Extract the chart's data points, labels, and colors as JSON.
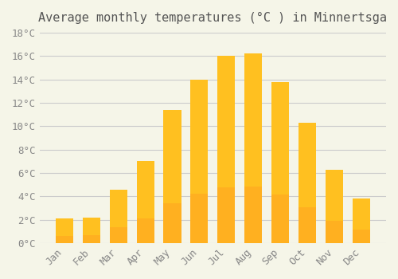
{
  "title": "Average monthly temperatures (°C ) in Minnertsga",
  "months": [
    "Jan",
    "Feb",
    "Mar",
    "Apr",
    "May",
    "Jun",
    "Jul",
    "Aug",
    "Sep",
    "Oct",
    "Nov",
    "Dec"
  ],
  "temperatures": [
    2.1,
    2.2,
    4.6,
    7.0,
    11.4,
    14.0,
    16.0,
    16.2,
    13.8,
    10.3,
    6.3,
    3.8
  ],
  "bar_color_top": "#FFC020",
  "bar_color_bottom": "#FFB020",
  "background_color": "#F5F5E8",
  "grid_color": "#CCCCCC",
  "ylim": [
    0,
    18
  ],
  "yticks": [
    0,
    2,
    4,
    6,
    8,
    10,
    12,
    14,
    16,
    18
  ],
  "ytick_labels": [
    "0°C",
    "2°C",
    "4°C",
    "6°C",
    "8°C",
    "10°C",
    "12°C",
    "14°C",
    "16°C",
    "18°C"
  ],
  "title_fontsize": 11,
  "tick_fontsize": 9,
  "bar_width": 0.65
}
